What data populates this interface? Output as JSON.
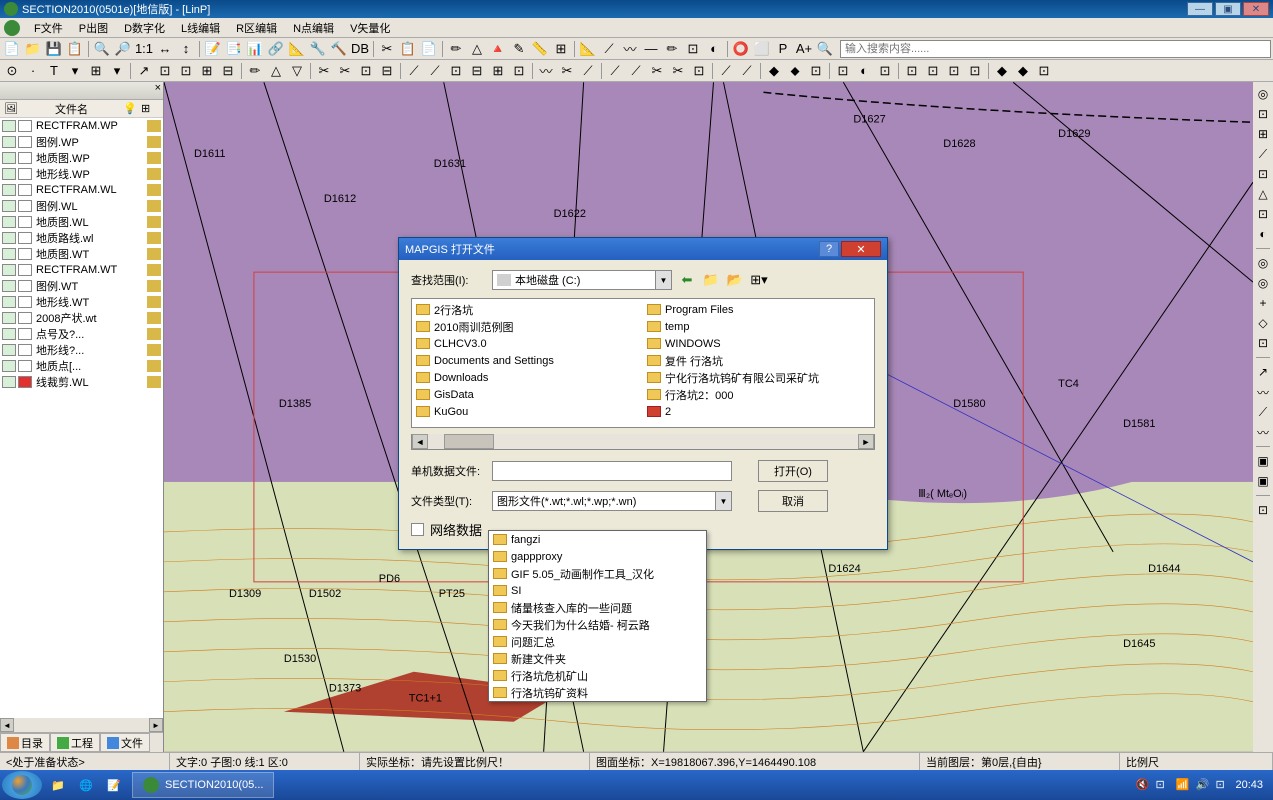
{
  "window": {
    "title": "SECTION2010(0501e)[地信版] - [LinP]"
  },
  "menu": [
    "F文件",
    "P出图",
    "D数字化",
    "L线编辑",
    "R区编辑",
    "N点编辑",
    "V矢量化"
  ],
  "toolbar1": {
    "items": [
      "📄",
      "📁",
      "💾",
      "📋",
      "|",
      "🔍",
      "🔎",
      "1:1",
      "↔",
      "↕",
      "|",
      "📝",
      "📑",
      "📊",
      "🔗",
      "📐",
      "🔧",
      "🔨",
      "DB",
      "|",
      "✂",
      "📋",
      "📄",
      "|",
      "✏",
      "△",
      "🔺",
      "✎",
      "📏",
      "⊞",
      "|",
      "📐",
      "⟋",
      "〰",
      "—",
      "✏",
      "⊡",
      "◐",
      "|",
      "⭕",
      "⬜",
      "P",
      "A+",
      "🔍"
    ],
    "search": "输入搜索内容......"
  },
  "toolbar2": [
    "⊙",
    "·",
    "T",
    "▾",
    "⊞",
    "▾",
    "|",
    "↗",
    "⊡",
    "⊡",
    "⊞",
    "⊟",
    "|",
    "✏",
    "△",
    "▽",
    "|",
    "✂",
    "✂",
    "⊡",
    "⊟",
    "|",
    "⟋",
    "⟋",
    "⊡",
    "⊟",
    "⊞",
    "⊡",
    "|",
    "〰",
    "✂",
    "⟋",
    "|",
    "⟋",
    "⟋",
    "✂",
    "✂",
    "⊡",
    "|",
    "⟋",
    "⟋",
    "|",
    "◆",
    "⬥",
    "⊡",
    "|",
    "⊡",
    "◐",
    "⊡",
    "|",
    "⊡",
    "⊡",
    "⊡",
    "⊡",
    "|",
    "◆",
    "◆",
    "⊡"
  ],
  "sidebar": {
    "header": "文件名",
    "cols": [
      "",
      "文件名",
      "",
      ""
    ],
    "files": [
      {
        "name": "RECTFRAM.WP",
        "t": "wp"
      },
      {
        "name": "图例.WP",
        "t": "wp"
      },
      {
        "name": "地质图.WP",
        "t": "wp"
      },
      {
        "name": "地形线.WP",
        "t": "wp"
      },
      {
        "name": "RECTFRAM.WL",
        "t": "wl"
      },
      {
        "name": "图例.WL",
        "t": "wl"
      },
      {
        "name": "地质图.WL",
        "t": "wl"
      },
      {
        "name": "地质路线.wl",
        "t": "wl"
      },
      {
        "name": "地质图.WT",
        "t": "wt"
      },
      {
        "name": "RECTFRAM.WT",
        "t": "wt"
      },
      {
        "name": "图例.WT",
        "t": "wt"
      },
      {
        "name": "地形线.WT",
        "t": "wt"
      },
      {
        "name": "2008产状.wt",
        "t": "wt"
      },
      {
        "name": "点号及?...",
        "t": "wt"
      },
      {
        "name": "地形线?...",
        "t": "wt"
      },
      {
        "name": "地质点[...",
        "t": "wt"
      },
      {
        "name": "线裁剪.WL",
        "t": "wl",
        "red": true
      }
    ],
    "tabs": [
      "目录",
      "工程",
      "文件"
    ]
  },
  "dialog": {
    "title": "MAPGIS 打开文件",
    "lookIn": {
      "label": "查找范围(I):",
      "value": "本地磁盘 (C:)"
    },
    "filesL": [
      "2行洛坑",
      "2010雨训范例图",
      "CLHCV3.0",
      "Documents and Settings",
      "Downloads",
      "GisData",
      "KuGou"
    ],
    "filesR": [
      {
        "n": "Program Files"
      },
      {
        "n": "temp"
      },
      {
        "n": "WINDOWS"
      },
      {
        "n": "复件 行洛坑"
      },
      {
        "n": "宁化行洛坑钨矿有限公司采矿坑"
      },
      {
        "n": "行洛坑2：000"
      },
      {
        "n": "2",
        "red": true
      }
    ],
    "fileName": {
      "label": "单机数据文件:",
      "value": ""
    },
    "fileType": {
      "label": "文件类型(T):",
      "value": "图形文件(*.wt;*.wl;*.wp;*.wn)"
    },
    "openBtn": "打开(O)",
    "cancelBtn": "取消",
    "netData": "网络数据"
  },
  "dropdown": [
    "fangzi",
    "gappproxy",
    "GIF 5.05_动画制作工具_汉化",
    "SI",
    "储量核查入库的一些问题",
    "今天我们为什么结婚- 柯云路",
    "问题汇总",
    "新建文件夹",
    "行洛坑危机矿山",
    "行洛坑钨矿资料"
  ],
  "status": {
    "ready": "<处于准备状态>",
    "text": "文字:0 子图:0 线:1 区:0",
    "coord": "实际坐标：请先设置比例尺！",
    "mapcoord": "图面坐标：X=19818067.396,Y=1464490.108",
    "layer": "当前图层：第0层,{自由}",
    "scale": "比例尺"
  },
  "taskbar": {
    "app": "SECTION2010(05...",
    "time": "20:43"
  },
  "mapLabels": [
    "D1611",
    "D1631",
    "D1622",
    "D1612",
    "D1627",
    "D1628",
    "D1629",
    "D1385",
    "D1309",
    "D1502",
    "PD6",
    "PT25",
    "TC1+1",
    "D1530",
    "D1373",
    "D1624",
    "D1645",
    "D1644",
    "D1580",
    "D1581",
    "TC4",
    "Ⅲ₂( MtₑOᵢ)"
  ],
  "rightTools": [
    "◎",
    "⊡",
    "⊞",
    "⟋",
    "⊡",
    "△",
    "⊡",
    "◐",
    "|",
    "◎",
    "◎",
    "+",
    "◇",
    "⊡",
    "|",
    "↗",
    "〰",
    "⟋",
    "〰",
    "|",
    "▣",
    "▣",
    "|",
    "⊡"
  ]
}
